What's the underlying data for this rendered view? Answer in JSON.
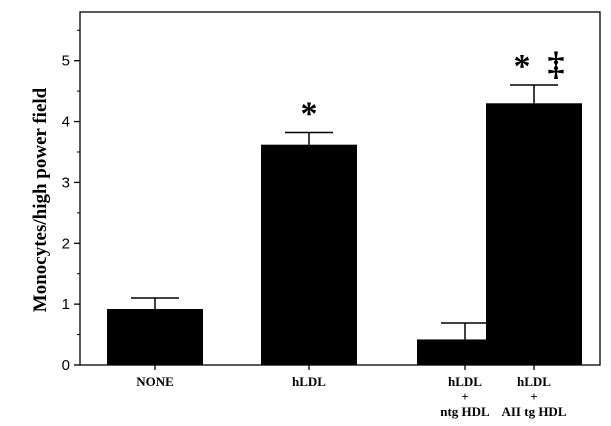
{
  "chart_data": {
    "type": "bar",
    "title": "",
    "xlabel": "",
    "ylabel": "Monocytes/high power field",
    "ylim": [
      0,
      5.8
    ],
    "yticks": [
      0,
      1,
      2,
      3,
      4,
      5
    ],
    "grid": false,
    "categories": [
      {
        "lines": [
          "NONE"
        ]
      },
      {
        "lines": [
          "hLDL"
        ]
      },
      {
        "lines": [
          "hLDL",
          "+",
          "ntg HDL"
        ]
      },
      {
        "lines": [
          "hLDL",
          "+",
          "AII tg HDL"
        ]
      }
    ],
    "values": [
      0.92,
      3.62,
      0.42,
      4.3
    ],
    "errors": [
      0.18,
      0.2,
      0.27,
      0.3
    ],
    "bar_color": "#000000",
    "annotations": [
      {
        "category": 1,
        "text": "*"
      },
      {
        "category": 3,
        "text": "*"
      },
      {
        "category": 3,
        "text": "‡"
      }
    ]
  }
}
